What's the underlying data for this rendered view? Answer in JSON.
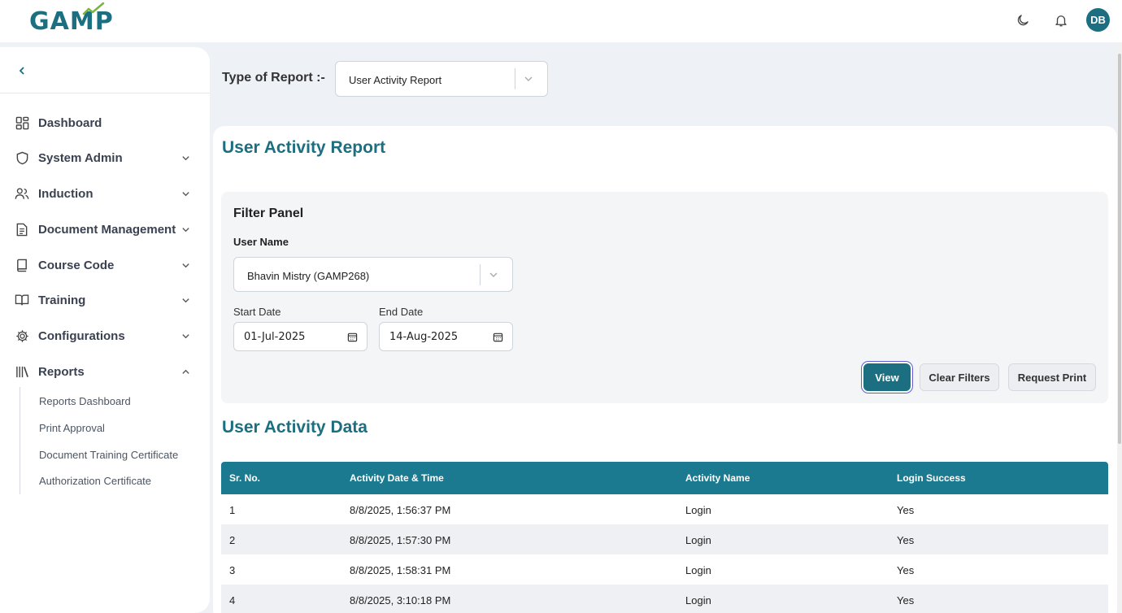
{
  "header": {
    "logo": "GAMP",
    "user_initials": "DB"
  },
  "sidebar": {
    "items": [
      {
        "label": "Dashboard",
        "icon": "dashboard-icon"
      },
      {
        "label": "System Admin",
        "icon": "shield-icon"
      },
      {
        "label": "Induction",
        "icon": "users-icon"
      },
      {
        "label": "Document Management",
        "icon": "document-icon"
      },
      {
        "label": "Course Code",
        "icon": "book-icon"
      },
      {
        "label": "Training",
        "icon": "open-book-icon"
      },
      {
        "label": "Configurations",
        "icon": "gear-icon"
      },
      {
        "label": "Reports",
        "icon": "library-icon"
      }
    ],
    "reports_sub": [
      "Reports Dashboard",
      "Print Approval",
      "Document Training Certificate",
      "Authorization Certificate"
    ]
  },
  "report_type": {
    "label": "Type of Report :-",
    "value": "User Activity Report"
  },
  "main": {
    "title": "User Activity Report",
    "filter": {
      "title": "Filter Panel",
      "user_name_label": "User Name",
      "user_name_value": "Bhavin Mistry (GAMP268)",
      "start_label": "Start Date",
      "start_value": "01-Jul-2025",
      "end_label": "End Date",
      "end_value": "14-Aug-2025",
      "view_btn": "View",
      "clear_btn": "Clear Filters",
      "print_btn": "Request Print"
    },
    "data_title": "User Activity Data",
    "table": {
      "columns": [
        "Sr. No.",
        "Activity Date & Time",
        "Activity Name",
        "Login Success"
      ],
      "rows": [
        [
          "1",
          "8/8/2025, 1:56:37 PM",
          "Login",
          "Yes"
        ],
        [
          "2",
          "8/8/2025, 1:57:30 PM",
          "Login",
          "Yes"
        ],
        [
          "3",
          "8/8/2025, 1:58:31 PM",
          "Login",
          "Yes"
        ],
        [
          "4",
          "8/8/2025, 3:10:18 PM",
          "Login",
          "Yes"
        ]
      ]
    }
  },
  "colors": {
    "brand": "#1b6f80",
    "table_header": "#1b7a8f",
    "background": "#eef1f6"
  }
}
